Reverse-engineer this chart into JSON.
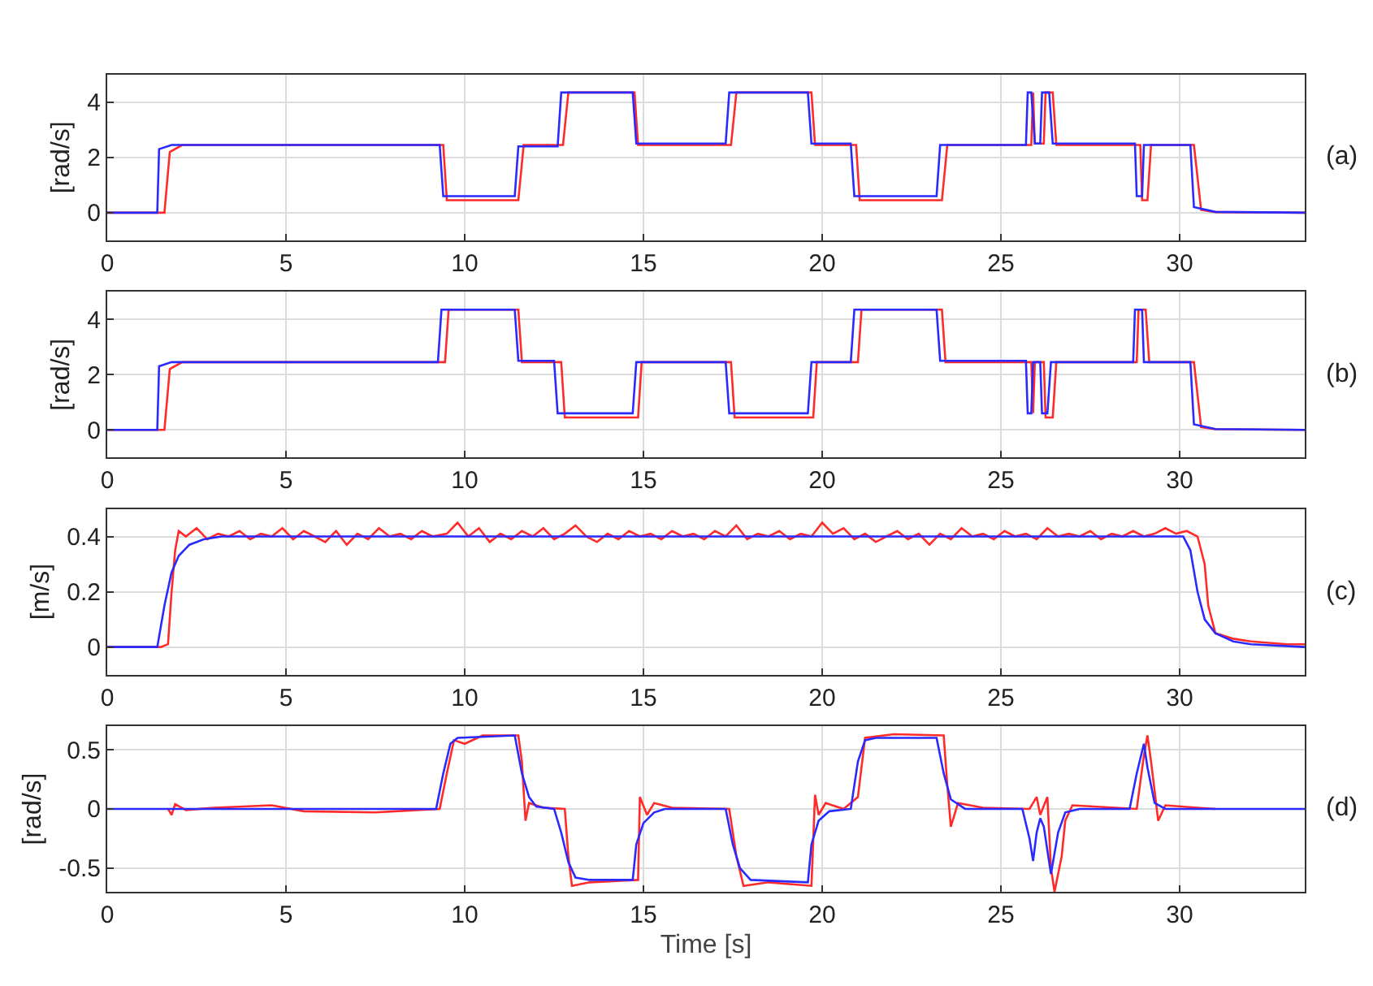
{
  "chart_data": [
    {
      "type": "line",
      "ylabel": "[rad/s]",
      "annotations": [
        "(a)"
      ],
      "xlim": [
        0,
        33.5
      ],
      "xticks": [
        0,
        5,
        10,
        15,
        20,
        25,
        30
      ],
      "ylim": [
        -1,
        5
      ],
      "yticks": [
        0,
        2,
        4
      ],
      "grid": true,
      "series": [
        {
          "color": "#ff2a2a",
          "x": [
            0,
            1.6,
            1.75,
            2.1,
            9.4,
            9.5,
            11.5,
            11.65,
            12.75,
            12.9,
            14.75,
            14.85,
            17.45,
            17.6,
            19.7,
            19.8,
            20.95,
            21.05,
            23.35,
            23.5,
            25.85,
            25.9,
            25.95,
            26.2,
            26.25,
            26.45,
            26.55,
            28.9,
            28.95,
            29.1,
            29.2,
            30.4,
            30.6,
            31,
            33.5
          ],
          "values": [
            0,
            0,
            2.2,
            2.45,
            2.45,
            0.45,
            0.45,
            2.45,
            2.45,
            4.35,
            4.35,
            2.45,
            2.45,
            4.35,
            4.35,
            2.45,
            2.45,
            0.45,
            0.45,
            2.45,
            2.45,
            4.35,
            2.5,
            2.5,
            4.35,
            4.35,
            2.45,
            2.45,
            0.45,
            0.45,
            2.45,
            2.45,
            0.1,
            0.02,
            0
          ]
        },
        {
          "color": "#2a2aff",
          "x": [
            0,
            1.4,
            1.45,
            1.8,
            9.3,
            9.4,
            11.4,
            11.5,
            12.6,
            12.7,
            14.7,
            14.8,
            17.3,
            17.4,
            19.6,
            19.7,
            20.8,
            20.9,
            23.2,
            23.3,
            25.7,
            25.75,
            25.85,
            25.95,
            26.1,
            26.15,
            26.35,
            26.45,
            28.75,
            28.8,
            28.95,
            29.0,
            30.3,
            30.4,
            31,
            33.5
          ],
          "values": [
            0,
            0,
            2.3,
            2.45,
            2.45,
            0.6,
            0.6,
            2.4,
            2.4,
            4.35,
            4.35,
            2.5,
            2.5,
            4.35,
            4.35,
            2.5,
            2.5,
            0.6,
            0.6,
            2.45,
            2.45,
            4.35,
            4.35,
            2.5,
            2.5,
            4.35,
            4.35,
            2.5,
            2.5,
            0.6,
            0.6,
            2.45,
            2.45,
            0.2,
            0.03,
            0
          ]
        }
      ]
    },
    {
      "type": "line",
      "ylabel": "[rad/s]",
      "annotations": [
        "(b)"
      ],
      "xlim": [
        0,
        33.5
      ],
      "xticks": [
        0,
        5,
        10,
        15,
        20,
        25,
        30
      ],
      "ylim": [
        -1,
        5
      ],
      "yticks": [
        0,
        2,
        4
      ],
      "grid": true,
      "series": [
        {
          "color": "#ff2a2a",
          "x": [
            0,
            1.6,
            1.75,
            2.1,
            9.45,
            9.55,
            11.5,
            11.6,
            12.7,
            12.8,
            14.85,
            14.95,
            17.45,
            17.55,
            19.75,
            19.85,
            21.0,
            21.1,
            23.35,
            23.45,
            25.85,
            25.9,
            25.95,
            26.2,
            26.25,
            26.45,
            26.55,
            28.8,
            28.85,
            29.05,
            29.15,
            30.4,
            30.6,
            31,
            33.5
          ],
          "values": [
            0,
            0,
            2.2,
            2.45,
            2.45,
            4.35,
            4.35,
            2.45,
            2.45,
            0.45,
            0.45,
            2.45,
            2.45,
            0.45,
            0.45,
            2.45,
            2.45,
            4.35,
            4.35,
            2.45,
            2.45,
            0.6,
            2.45,
            2.45,
            0.45,
            0.45,
            2.45,
            2.45,
            4.35,
            4.35,
            2.45,
            2.45,
            0.1,
            0.02,
            0
          ]
        },
        {
          "color": "#2a2aff",
          "x": [
            0,
            1.4,
            1.45,
            1.8,
            9.25,
            9.35,
            11.4,
            11.5,
            12.5,
            12.6,
            14.7,
            14.8,
            17.3,
            17.4,
            19.6,
            19.7,
            20.8,
            20.9,
            23.2,
            23.3,
            25.7,
            25.75,
            25.85,
            25.9,
            26.1,
            26.15,
            26.3,
            26.4,
            28.7,
            28.75,
            28.95,
            29.0,
            30.3,
            30.4,
            31,
            33.5
          ],
          "values": [
            0,
            0,
            2.3,
            2.45,
            2.45,
            4.35,
            4.35,
            2.5,
            2.5,
            0.6,
            0.6,
            2.45,
            2.45,
            0.6,
            0.6,
            2.45,
            2.45,
            4.35,
            4.35,
            2.5,
            2.5,
            0.6,
            0.6,
            2.45,
            2.45,
            0.6,
            0.6,
            2.45,
            2.45,
            4.35,
            4.35,
            2.45,
            2.45,
            0.2,
            0.03,
            0
          ]
        }
      ]
    },
    {
      "type": "line",
      "ylabel": "[m/s]",
      "annotations": [
        "(c)"
      ],
      "xlim": [
        0,
        33.5
      ],
      "xticks": [
        0,
        5,
        10,
        15,
        20,
        25,
        30
      ],
      "ylim": [
        -0.1,
        0.5
      ],
      "yticks": [
        0,
        0.2,
        0.4
      ],
      "grid": true,
      "series": [
        {
          "color": "#ff2a2a",
          "x": [
            0,
            1.5,
            1.7,
            1.8,
            1.9,
            2.0,
            2.2,
            2.5,
            2.8,
            3.1,
            3.4,
            3.7,
            4.0,
            4.3,
            4.6,
            4.9,
            5.2,
            5.5,
            5.8,
            6.1,
            6.4,
            6.7,
            7.0,
            7.3,
            7.6,
            7.9,
            8.2,
            8.5,
            8.8,
            9.1,
            9.5,
            9.8,
            10.1,
            10.4,
            10.7,
            11.0,
            11.3,
            11.6,
            11.9,
            12.2,
            12.5,
            12.8,
            13.1,
            13.4,
            13.7,
            14.0,
            14.3,
            14.6,
            14.9,
            15.2,
            15.5,
            15.8,
            16.1,
            16.4,
            16.7,
            17.0,
            17.3,
            17.6,
            17.9,
            18.2,
            18.5,
            18.8,
            19.1,
            19.4,
            19.7,
            20.0,
            20.3,
            20.6,
            20.9,
            21.2,
            21.5,
            21.8,
            22.1,
            22.4,
            22.7,
            23.0,
            23.3,
            23.6,
            23.9,
            24.2,
            24.5,
            24.8,
            25.1,
            25.4,
            25.7,
            26.0,
            26.3,
            26.6,
            26.9,
            27.2,
            27.5,
            27.8,
            28.1,
            28.4,
            28.7,
            29.0,
            29.3,
            29.6,
            29.9,
            30.2,
            30.5,
            30.7,
            30.8,
            31,
            31.5,
            32,
            33,
            33.5
          ],
          "values": [
            0,
            0,
            0.01,
            0.2,
            0.35,
            0.42,
            0.4,
            0.43,
            0.39,
            0.41,
            0.4,
            0.42,
            0.39,
            0.41,
            0.4,
            0.43,
            0.39,
            0.42,
            0.4,
            0.38,
            0.42,
            0.37,
            0.41,
            0.39,
            0.43,
            0.4,
            0.41,
            0.39,
            0.42,
            0.4,
            0.41,
            0.45,
            0.4,
            0.43,
            0.38,
            0.41,
            0.39,
            0.42,
            0.4,
            0.43,
            0.39,
            0.41,
            0.44,
            0.4,
            0.38,
            0.41,
            0.39,
            0.42,
            0.4,
            0.41,
            0.39,
            0.42,
            0.4,
            0.41,
            0.39,
            0.42,
            0.4,
            0.44,
            0.39,
            0.41,
            0.4,
            0.42,
            0.39,
            0.41,
            0.4,
            0.45,
            0.41,
            0.43,
            0.39,
            0.41,
            0.38,
            0.4,
            0.42,
            0.39,
            0.41,
            0.37,
            0.41,
            0.39,
            0.43,
            0.4,
            0.41,
            0.39,
            0.42,
            0.4,
            0.41,
            0.39,
            0.43,
            0.4,
            0.41,
            0.4,
            0.42,
            0.39,
            0.41,
            0.4,
            0.42,
            0.4,
            0.41,
            0.43,
            0.41,
            0.42,
            0.4,
            0.3,
            0.15,
            0.05,
            0.03,
            0.02,
            0.01,
            0.01
          ]
        },
        {
          "color": "#2a2aff",
          "x": [
            0,
            1.4,
            1.6,
            1.8,
            2.0,
            2.3,
            2.7,
            3.2,
            30.1,
            30.3,
            30.5,
            30.7,
            31,
            31.5,
            32,
            33.5
          ],
          "values": [
            0,
            0,
            0.15,
            0.27,
            0.33,
            0.37,
            0.39,
            0.4,
            0.4,
            0.35,
            0.2,
            0.1,
            0.05,
            0.02,
            0.01,
            0
          ]
        }
      ]
    },
    {
      "type": "line",
      "ylabel": "[rad/s]",
      "xlabel": "Time [s]",
      "annotations": [
        "(d)"
      ],
      "xlim": [
        0,
        33.5
      ],
      "xticks": [
        0,
        5,
        10,
        15,
        20,
        25,
        30
      ],
      "ylim": [
        -0.7,
        0.7
      ],
      "yticks": [
        -0.5,
        0,
        0.5
      ],
      "grid": true,
      "series": [
        {
          "color": "#ff2a2a",
          "x": [
            1.7,
            1.8,
            1.9,
            2.2,
            3,
            4.6,
            5.5,
            7.5,
            9.3,
            9.5,
            9.7,
            10,
            10.5,
            11.5,
            11.6,
            11.7,
            11.8,
            12.2,
            12.8,
            12.9,
            13.0,
            13.5,
            14.85,
            14.9,
            15.1,
            15.3,
            15.8,
            17.4,
            17.6,
            17.8,
            18.5,
            19.7,
            19.8,
            19.9,
            20.1,
            20.6,
            21.0,
            21.2,
            22,
            23.4,
            23.5,
            23.6,
            23.8,
            24.5,
            25.8,
            26.0,
            26.1,
            26.3,
            26.4,
            26.5,
            26.7,
            26.8,
            27.0,
            28.8,
            29.0,
            29.1,
            29.2,
            29.4,
            29.6,
            30.5,
            31
          ],
          "values": [
            0,
            -0.05,
            0.04,
            -0.01,
            0.01,
            0.03,
            -0.02,
            -0.03,
            0,
            0.3,
            0.58,
            0.55,
            0.62,
            0.62,
            0.4,
            -0.1,
            0.05,
            0.01,
            0,
            -0.4,
            -0.65,
            -0.62,
            -0.6,
            0.1,
            -0.05,
            0.05,
            0.01,
            0,
            -0.4,
            -0.65,
            -0.62,
            -0.65,
            0.12,
            -0.05,
            0.05,
            0,
            0.1,
            0.6,
            0.63,
            0.62,
            0.2,
            -0.15,
            0.05,
            0.01,
            0,
            0.1,
            -0.05,
            0.1,
            -0.5,
            -0.7,
            -0.4,
            -0.1,
            0.03,
            0,
            0.45,
            0.62,
            0.4,
            -0.1,
            0.03,
            0.01,
            0
          ]
        },
        {
          "color": "#2a2aff",
          "x": [
            0,
            9.2,
            9.4,
            9.6,
            9.8,
            11.4,
            11.6,
            11.8,
            12.0,
            12.5,
            12.7,
            12.9,
            13.1,
            13.5,
            14.7,
            14.8,
            15.0,
            15.3,
            15.6,
            17.3,
            17.5,
            17.7,
            18.0,
            19.6,
            19.7,
            19.9,
            20.2,
            20.8,
            21.0,
            21.2,
            21.5,
            23.2,
            23.4,
            23.6,
            24.0,
            25.6,
            25.8,
            25.9,
            26.0,
            26.1,
            26.2,
            26.4,
            26.6,
            26.8,
            27.2,
            28.6,
            28.8,
            29.0,
            29.1,
            29.3,
            29.6,
            33.5
          ],
          "values": [
            0,
            0,
            0.3,
            0.55,
            0.6,
            0.62,
            0.3,
            0.1,
            0.02,
            0,
            -0.2,
            -0.45,
            -0.58,
            -0.6,
            -0.6,
            -0.3,
            -0.12,
            -0.03,
            0,
            0,
            -0.3,
            -0.5,
            -0.6,
            -0.62,
            -0.3,
            -0.1,
            -0.02,
            0,
            0.4,
            0.58,
            0.6,
            0.6,
            0.3,
            0.08,
            0,
            0,
            -0.25,
            -0.44,
            -0.2,
            -0.08,
            -0.15,
            -0.55,
            -0.2,
            -0.03,
            0,
            0,
            0.3,
            0.55,
            0.35,
            0.05,
            0,
            0
          ]
        }
      ]
    }
  ]
}
